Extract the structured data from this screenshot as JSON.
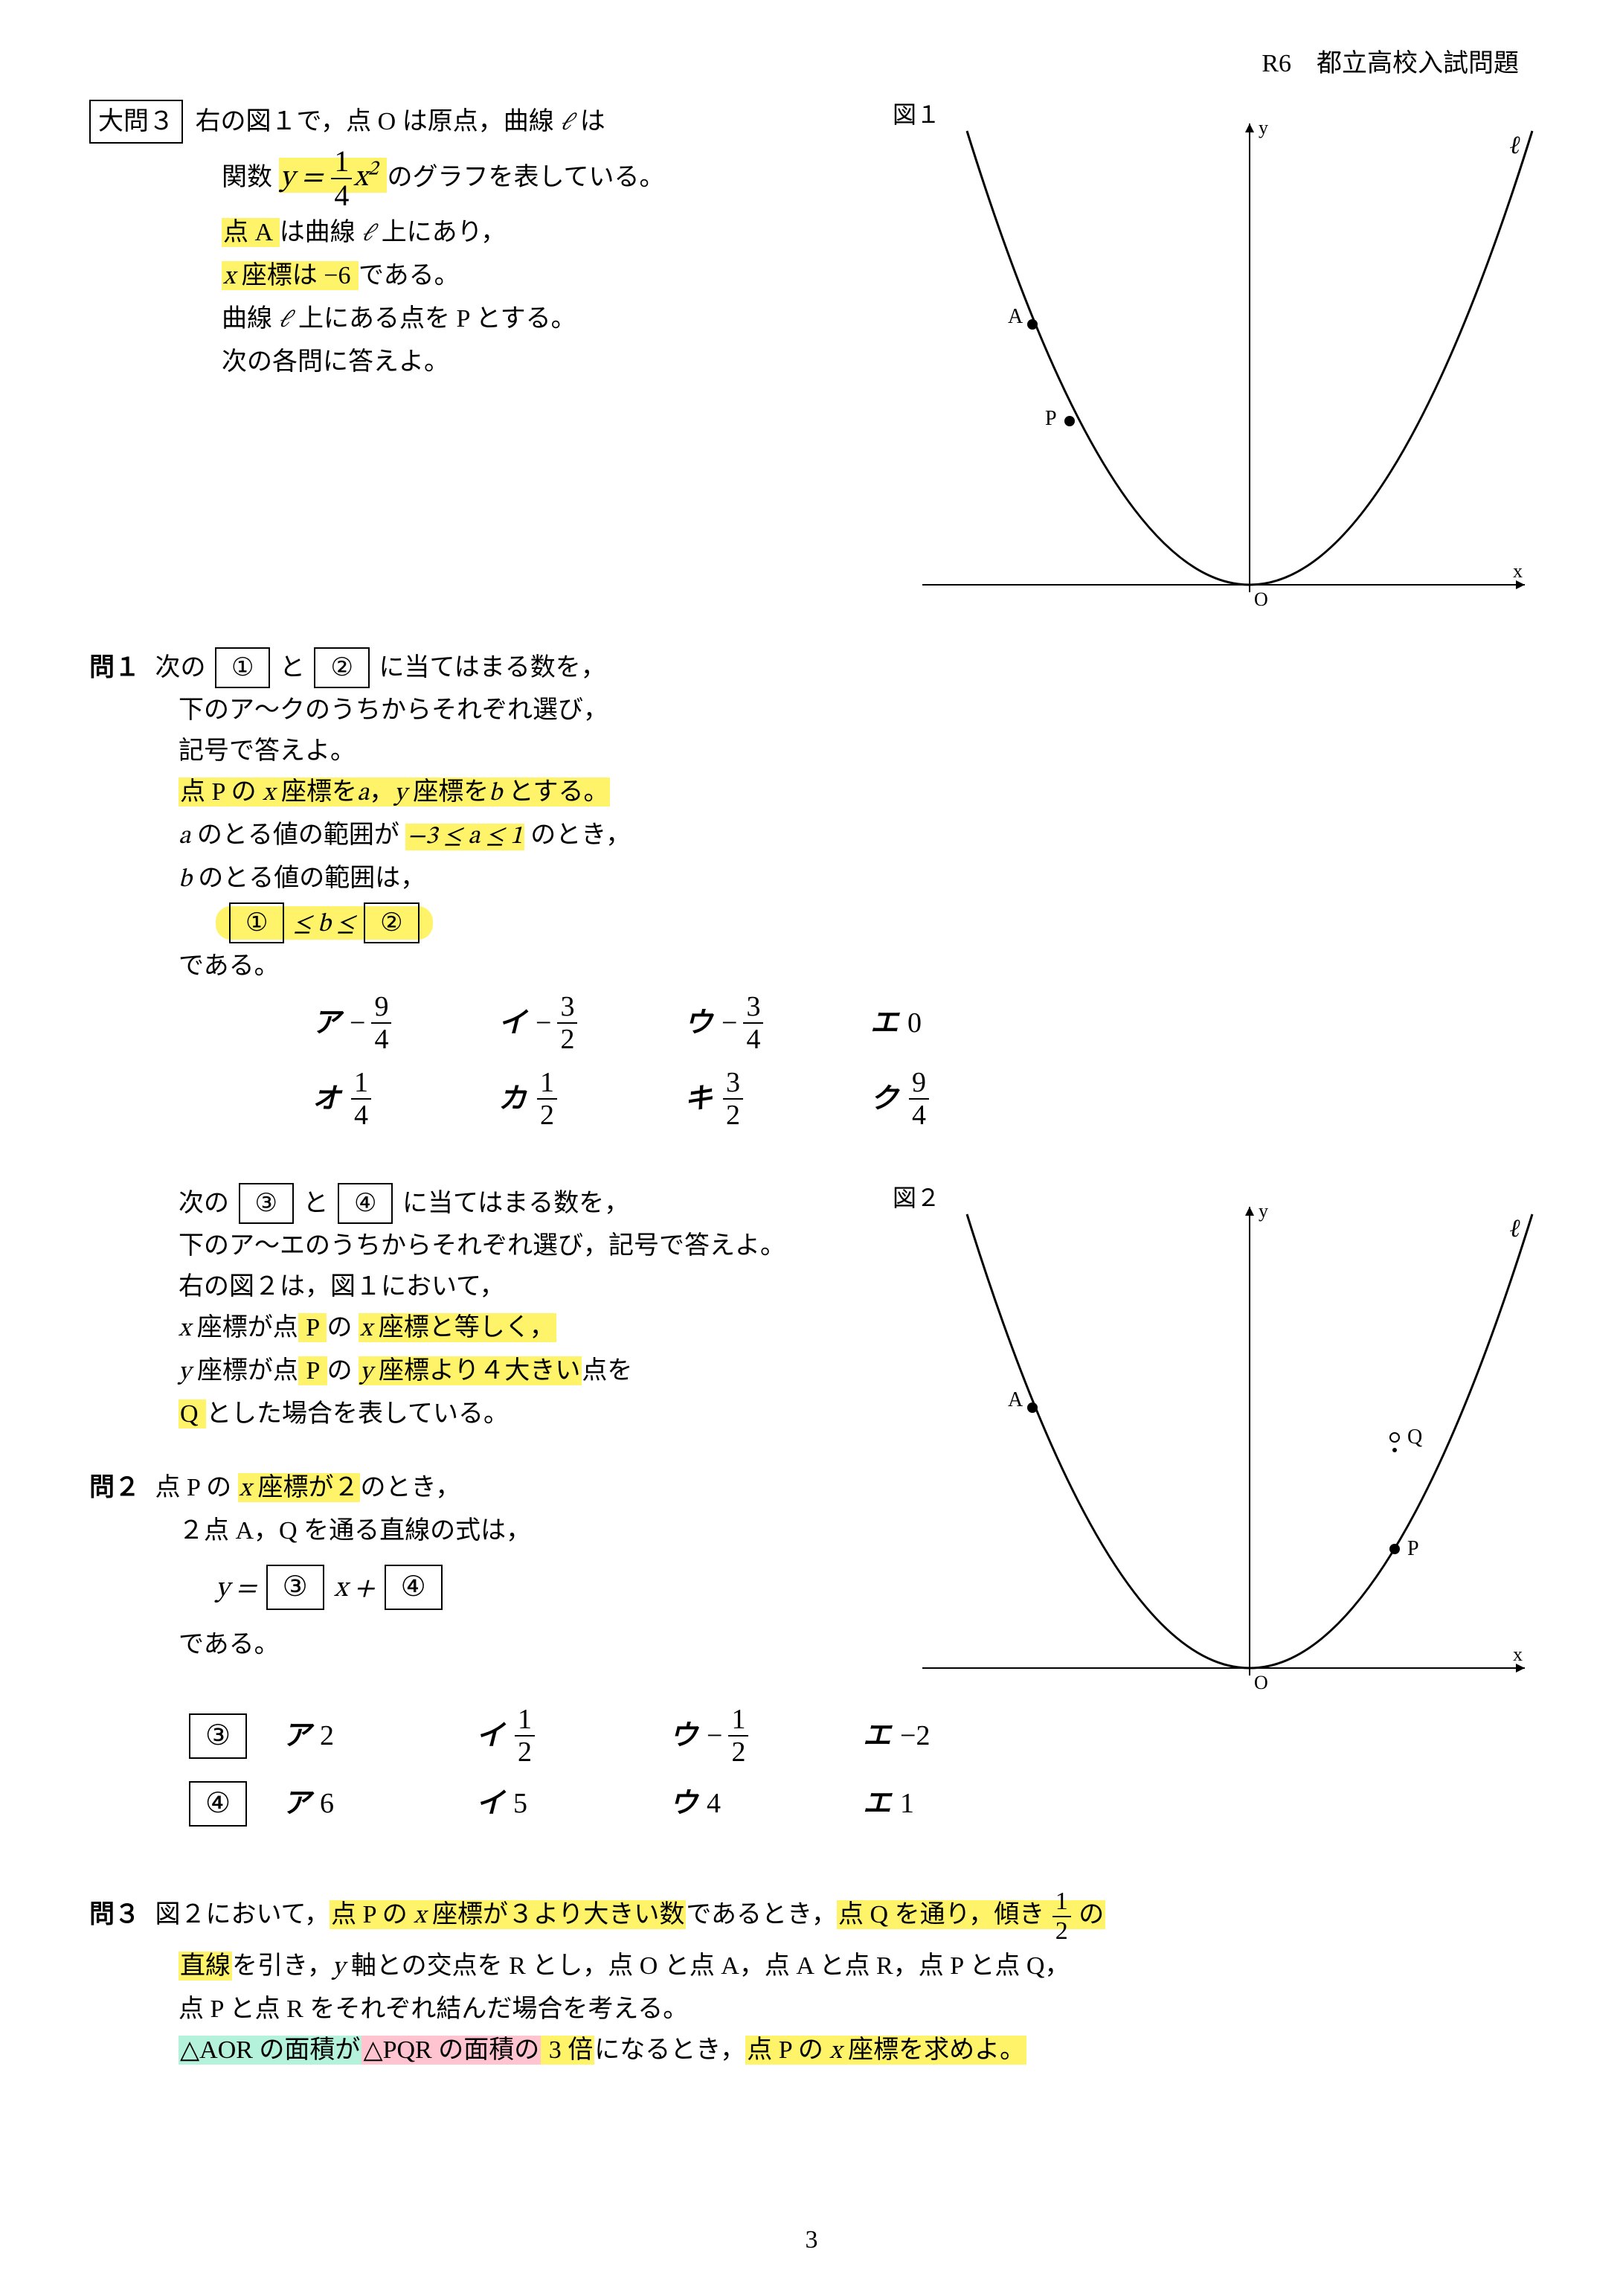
{
  "header": "R6　都立高校入試問題",
  "daimon_label": "大問３",
  "intro": {
    "l1a": "右の図１で，点 O は原点，曲線 ",
    "l1b": " は",
    "l2a": "関数 ",
    "l2b": " のグラフを表している。",
    "l3a": "点 A ",
    "l3b": "は曲線 ",
    "l3c": " 上にあり，",
    "l4a": " 座標は −6 ",
    "l4b": "である。",
    "l5a": "曲線 ",
    "l5b": " 上にある点を P とする。",
    "l6": "次の各問に答えよ。",
    "func_eq_pre": "y = ",
    "func_num": "1",
    "func_den": "4",
    "func_sq": "x",
    "func_sq_exp": "2"
  },
  "fig1": {
    "label": "図１",
    "y_label": "y",
    "x_label": "x",
    "l_label": "ℓ",
    "o_label": "O",
    "A_label": "A",
    "P_label": "P",
    "curve_color": "#000000",
    "axis_color": "#000000",
    "font_size": 26
  },
  "q1": {
    "label": "問１",
    "l1a": "次の",
    "box1": "①",
    "l1b": "と",
    "box2": "②",
    "l1c": "に当てはまる数を，",
    "l2": "下のア〜クのうちからそれぞれ選び，",
    "l3": "記号で答えよ。",
    "l4a": "点 P の ",
    "l4b": " 座標を",
    "l4c": "a",
    "l4d": "，",
    "l4e": " 座標を",
    "l4f": "b",
    "l4g": " とする。",
    "l5a": "a",
    "l5b": " のとる値の範囲が ",
    "l5c": " のとき，",
    "l6a": "b",
    "l6b": " のとる値の範囲は，",
    "range": "−3 ≤ a ≤ 1",
    "ineq_le1": " ≤ b ≤ ",
    "dearu": "である。",
    "options": [
      {
        "lab": "ア",
        "neg": true,
        "num": "9",
        "den": "4"
      },
      {
        "lab": "イ",
        "neg": true,
        "num": "3",
        "den": "2"
      },
      {
        "lab": "ウ",
        "neg": true,
        "num": "3",
        "den": "4"
      },
      {
        "lab": "エ",
        "plain": "0"
      },
      {
        "lab": "オ",
        "num": "1",
        "den": "4"
      },
      {
        "lab": "カ",
        "num": "1",
        "den": "2"
      },
      {
        "lab": "キ",
        "num": "3",
        "den": "2"
      },
      {
        "lab": "ク",
        "num": "9",
        "den": "4"
      }
    ]
  },
  "mid": {
    "l1a": "次の",
    "box3": "③",
    "l1b": "と",
    "box4": "④",
    "l1c": "に当てはまる数を，",
    "l2": "下のア〜エのうちからそれぞれ選び，記号で答えよ。",
    "l3": "右の図２は，図１において，",
    "l4a": " 座標が点",
    "l4b": " P ",
    "l4c": "の ",
    "l4d": " 座標と等しく，",
    "l5a": " 座標が点",
    "l5b": " P ",
    "l5c": "の ",
    "l5d": " 座標より４大きい",
    "l5e": "点を",
    "l6a": " Q ",
    "l6b": "とした場合を表している。"
  },
  "fig2": {
    "label": "図２",
    "y_label": "y",
    "x_label": "x",
    "l_label": "ℓ",
    "o_label": "O",
    "A_label": "A",
    "P_label": "P",
    "Q_label": "Q"
  },
  "q2": {
    "label": "問２",
    "l1a": "点 P の ",
    "l1b": " 座標が２",
    "l1c": "のとき，",
    "l2": "２点 A，Q を通る直線の式は，",
    "eq_y": "y = ",
    "eq_xplus": " x + ",
    "dearu": "である。",
    "row3_label": "③",
    "row4_label": "④",
    "opts3": [
      {
        "lab": "ア",
        "plain": "2"
      },
      {
        "lab": "イ",
        "num": "1",
        "den": "2"
      },
      {
        "lab": "ウ",
        "neg": true,
        "num": "1",
        "den": "2"
      },
      {
        "lab": "エ",
        "plain": "−2"
      }
    ],
    "opts4": [
      {
        "lab": "ア",
        "plain": "6"
      },
      {
        "lab": "イ",
        "plain": "5"
      },
      {
        "lab": "ウ",
        "plain": "4"
      },
      {
        "lab": "エ",
        "plain": "1"
      }
    ]
  },
  "q3": {
    "label": "問３",
    "l1a": "図２において，",
    "l1b": "点 P の ",
    "l1c": " 座標が３より大きい数",
    "l1d": "であるとき，",
    "l1e": "点 Q を通り，傾き ",
    "l1f": " の",
    "slope_num": "1",
    "slope_den": "2",
    "l2a": "直線",
    "l2b": "を引き，",
    "l2c": " 軸との交点を R とし，点 O と点 A，点 A と点 R，点 P と点 Q，",
    "l3": "点 P と点 R をそれぞれ結んだ場合を考える。",
    "l4a": "△AOR の面積が",
    "l4b": "△PQR の面積の",
    "l4c": " 3 倍",
    "l4d": "になるとき，",
    "l4e": "点 P の ",
    "l4f": " 座標を求めよ。"
  },
  "page_number": "3",
  "ell": "ℓ"
}
